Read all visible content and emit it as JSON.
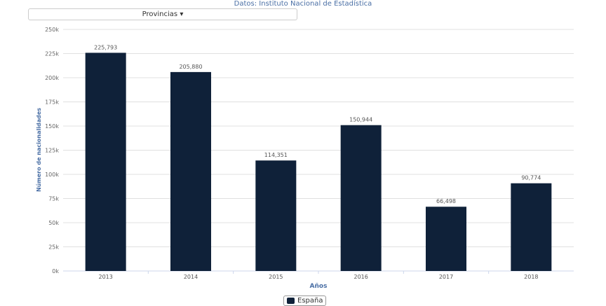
{
  "subtitle": "Datos: Instituto Nacional de Estadística",
  "dropdown": {
    "label": "Provincias",
    "icon": "caret-down-icon"
  },
  "chart_data": {
    "type": "bar",
    "categories": [
      "2013",
      "2014",
      "2015",
      "2016",
      "2017",
      "2018"
    ],
    "series": [
      {
        "name": "España",
        "values": [
          225793,
          205880,
          114351,
          150944,
          66498,
          90774
        ],
        "color": "#0f2139"
      }
    ],
    "data_labels": [
      "225,793",
      "205,880",
      "114,351",
      "150,944",
      "66,498",
      "90,774"
    ],
    "xlabel": "Años",
    "ylabel": "Número de nacionalidades",
    "ylim": [
      0,
      250000
    ],
    "yticks": [
      "0k",
      "25k",
      "50k",
      "75k",
      "100k",
      "125k",
      "150k",
      "175k",
      "200k",
      "225k",
      "250k"
    ],
    "grid": true,
    "legend": "bottom-center"
  }
}
